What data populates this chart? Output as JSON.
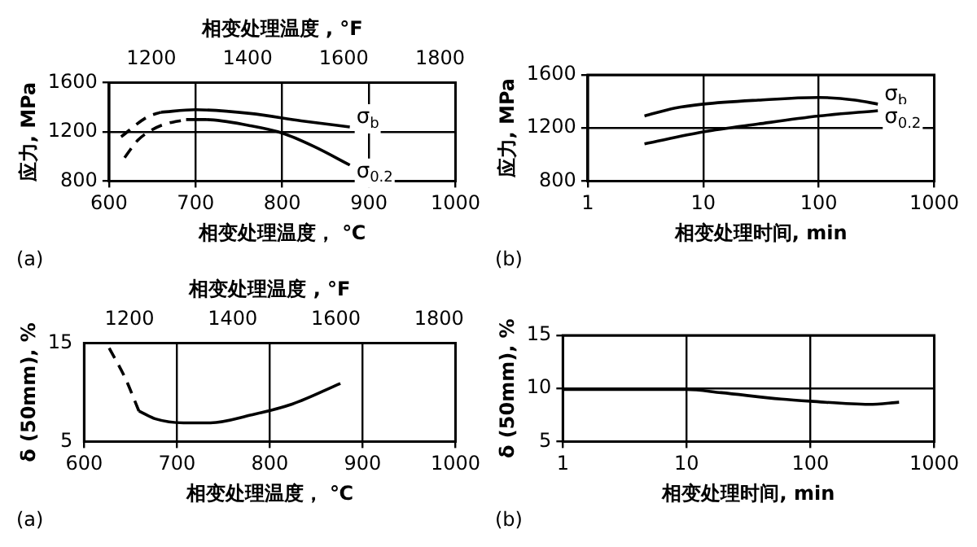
{
  "chart_data": [
    {
      "type": "line",
      "xlabel": "相变处理温度， ℃",
      "ylabel": "应力, MPa",
      "x2label": "相变处理温度 , °F",
      "annotations": [
        "(a)"
      ],
      "xlim": [
        600,
        1000
      ],
      "xticks": [
        600,
        700,
        800,
        900,
        1000
      ],
      "x2lim": [
        1112,
        1832
      ],
      "x2ticks": [
        1200,
        1400,
        1600,
        1800
      ],
      "ylim": [
        800,
        1600
      ],
      "yticks": [
        800,
        1200,
        1600
      ],
      "grid": true,
      "marker": "none",
      "series": [
        {
          "name": "σ$_{b}$",
          "color": "#000000",
          "line_style": "solid",
          "x": [
            660,
            700,
            763,
            822,
            878
          ],
          "values": [
            1360,
            1380,
            1350,
            1290,
            1240
          ]
        },
        {
          "color": "#000000",
          "line_style": "dashed",
          "x": [
            614,
            644,
            660
          ],
          "values": [
            1160,
            1320,
            1360
          ]
        },
        {
          "name": "σ$_{0.2}$",
          "color": "#000000",
          "line_style": "solid",
          "x": [
            689,
            711,
            763,
            800,
            837,
            878
          ],
          "values": [
            1300,
            1300,
            1250,
            1190,
            1080,
            930
          ]
        },
        {
          "color": "#000000",
          "line_style": "dashed",
          "x": [
            618,
            633,
            648,
            663,
            689
          ],
          "values": [
            990,
            1130,
            1210,
            1260,
            1300
          ]
        }
      ]
    },
    {
      "type": "line",
      "xlabel": "相变处理时间, min",
      "ylabel": "应力, MPa",
      "annotations": [
        "(b)"
      ],
      "log": "x",
      "xlim": [
        1,
        1000
      ],
      "xticks": [
        1,
        10,
        100,
        1000
      ],
      "ylim": [
        800,
        1600
      ],
      "yticks": [
        800,
        1200,
        1600
      ],
      "grid": true,
      "marker": "none",
      "series": [
        {
          "name": "σ$_{b}$",
          "color": "#000000",
          "line_style": "solid",
          "x": [
            3.1,
            5.7,
            10,
            30,
            100,
            207,
            325
          ],
          "values": [
            1290,
            1350,
            1380,
            1410,
            1430,
            1410,
            1380
          ]
        },
        {
          "name": "σ$_{0.2}$",
          "color": "#000000",
          "line_style": "solid",
          "x": [
            3.1,
            10,
            30,
            100,
            325
          ],
          "values": [
            1080,
            1170,
            1230,
            1290,
            1330
          ]
        }
      ]
    },
    {
      "type": "line",
      "xlabel": "相变处理温度， ℃",
      "ylabel": "δ (50mm), %",
      "x2label": "相变处理温度 , °F",
      "annotations": [
        "(a)"
      ],
      "xlim": [
        600,
        1000
      ],
      "xticks": [
        600,
        700,
        800,
        900,
        1000
      ],
      "x2lim": [
        1112,
        1832
      ],
      "x2ticks": [
        1200,
        1400,
        1600,
        1800
      ],
      "ylim": [
        5,
        15
      ],
      "yticks": [
        5,
        15
      ],
      "grid": "x",
      "marker": "none",
      "series": [
        {
          "color": "#000000",
          "line_style": "dashed",
          "x": [
            627,
            644,
            659
          ],
          "values": [
            14.5,
            11.5,
            8.1
          ]
        },
        {
          "color": "#000000",
          "line_style": "solid",
          "x": [
            659,
            677,
            707,
            736,
            780,
            824,
            876
          ],
          "values": [
            8.1,
            7.3,
            6.9,
            6.9,
            7.7,
            8.8,
            10.9
          ]
        }
      ]
    },
    {
      "type": "line",
      "xlabel": "相变处理时间, min",
      "ylabel": "δ (50mm), %",
      "annotations": [
        "(b)"
      ],
      "log": "x",
      "xlim": [
        1,
        1000
      ],
      "xticks": [
        1,
        10,
        100,
        1000
      ],
      "ylim": [
        5,
        15
      ],
      "yticks": [
        5,
        10,
        15
      ],
      "grid": true,
      "marker": "none",
      "series": [
        {
          "color": "#000000",
          "line_style": "solid",
          "x": [
            1,
            10,
            19,
            58,
            100,
            297,
            520
          ],
          "values": [
            9.9,
            9.9,
            9.6,
            9.0,
            8.8,
            8.5,
            8.7
          ]
        }
      ]
    }
  ]
}
